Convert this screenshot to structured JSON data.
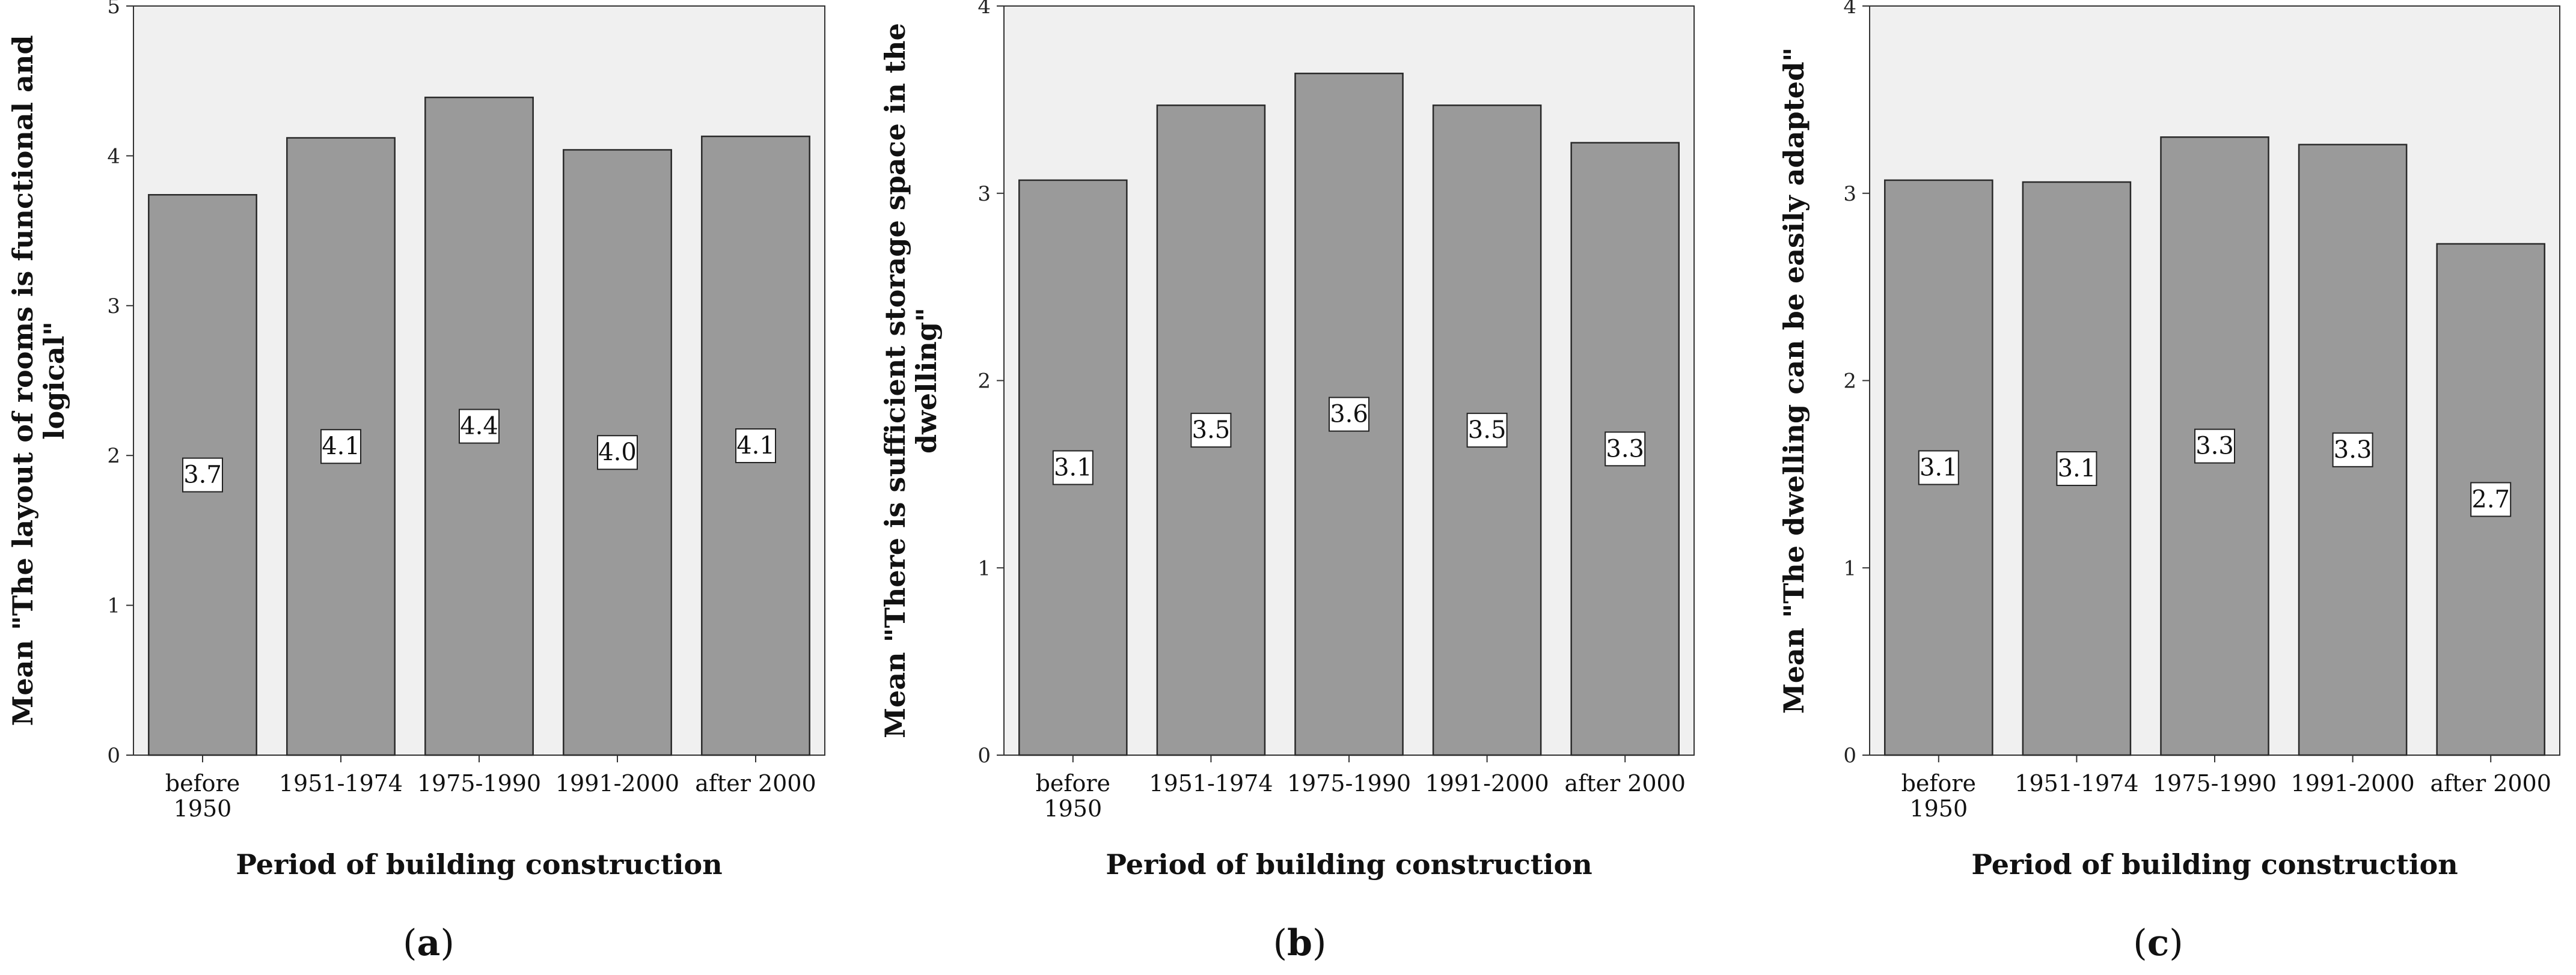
{
  "chart_data": [
    {
      "type": "bar",
      "panel_label": "a",
      "categories": [
        "before 1950",
        "1951-1974",
        "1975-1990",
        "1991-2000",
        "after 2000"
      ],
      "category_lines": [
        [
          "before",
          "1950"
        ],
        [
          "1951-1974"
        ],
        [
          "1975-1990"
        ],
        [
          "1991-2000"
        ],
        [
          "after 2000"
        ]
      ],
      "values": [
        3.74,
        4.12,
        4.39,
        4.04,
        4.13
      ],
      "data_labels": [
        "3.7",
        "4.1",
        "4.4",
        "4.0",
        "4.1"
      ],
      "ylabel_lines": [
        "Mean \"The layout of rooms is functional and",
        "logical\""
      ],
      "xlabel": "Period of building construction",
      "ylim": [
        0,
        5
      ],
      "yticks": [
        0,
        1,
        2,
        3,
        4,
        5
      ],
      "bar_color": "#9a9a9a",
      "plot_bg": "#f0f0f0"
    },
    {
      "type": "bar",
      "panel_label": "b",
      "categories": [
        "before 1950",
        "1951-1974",
        "1975-1990",
        "1991-2000",
        "after 2000"
      ],
      "category_lines": [
        [
          "before",
          "1950"
        ],
        [
          "1951-1974"
        ],
        [
          "1975-1990"
        ],
        [
          "1991-2000"
        ],
        [
          "after 2000"
        ]
      ],
      "values": [
        3.07,
        3.47,
        3.64,
        3.47,
        3.27
      ],
      "data_labels": [
        "3.1",
        "3.5",
        "3.6",
        "3.5",
        "3.3"
      ],
      "ylabel_lines": [
        "Mean \"There is sufficient storage space in the",
        "dwelling\""
      ],
      "xlabel": "Period of building construction",
      "ylim": [
        0,
        4
      ],
      "yticks": [
        0,
        1,
        2,
        3,
        4
      ],
      "bar_color": "#9a9a9a",
      "plot_bg": "#f0f0f0"
    },
    {
      "type": "bar",
      "panel_label": "c",
      "categories": [
        "before 1950",
        "1951-1974",
        "1975-1990",
        "1991-2000",
        "after 2000"
      ],
      "category_lines": [
        [
          "before",
          "1950"
        ],
        [
          "1951-1974"
        ],
        [
          "1975-1990"
        ],
        [
          "1991-2000"
        ],
        [
          "after 2000"
        ]
      ],
      "values": [
        3.07,
        3.06,
        3.3,
        3.26,
        2.73
      ],
      "data_labels": [
        "3.1",
        "3.1",
        "3.3",
        "3.3",
        "2.7"
      ],
      "ylabel_lines": [
        "Mean \"The dwelling can be easily adapted\""
      ],
      "xlabel": "Period of building construction",
      "ylim": [
        0,
        4
      ],
      "yticks": [
        0,
        1,
        2,
        3,
        4
      ],
      "bar_color": "#9a9a9a",
      "plot_bg": "#f0f0f0"
    }
  ]
}
